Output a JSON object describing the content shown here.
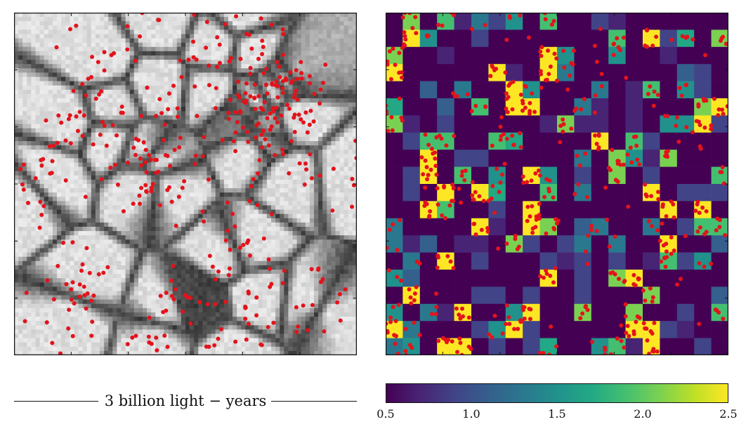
{
  "scale_bar": {
    "label": "3 billion light − years"
  },
  "colorbar": {
    "colormap": "viridis",
    "range": [
      0.5,
      2.5
    ],
    "ticks": [
      "0.5",
      "1.0",
      "1.5",
      "2.0",
      "2.5"
    ]
  },
  "colors": {
    "points": "#e3131b",
    "frame": "#111111",
    "background": "#ffffff"
  }
}
